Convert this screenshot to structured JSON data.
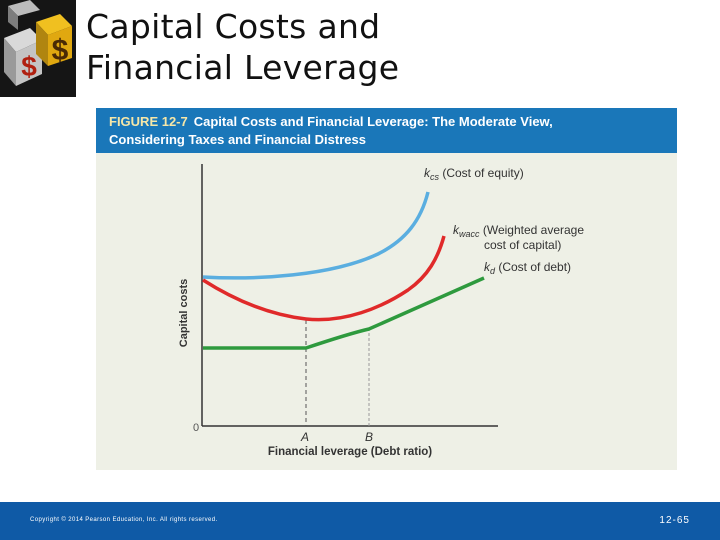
{
  "title": {
    "line1": "Capital Costs and",
    "line2": "Financial Leverage"
  },
  "figure": {
    "label": "FIGURE 12-7",
    "caption_line1": "Capital Costs and Financial Leverage: The Moderate View,",
    "caption_line2": "Considering Taxes and Financial Distress",
    "ylabel": "Capital costs",
    "xlabel": "Financial leverage (Debt ratio)",
    "origin": "0",
    "point_a": "A",
    "point_b": "B",
    "curves": {
      "equity_symbol": "k",
      "equity_sub": "cs",
      "equity_text": " (Cost of equity)",
      "wacc_symbol": "k",
      "wacc_sub": "wacc",
      "wacc_text": " (Weighted average",
      "wacc_text2": "cost of capital)",
      "debt_symbol": "k",
      "debt_sub": "d",
      "debt_text": " (Cost of debt)"
    },
    "colors": {
      "equity": "#5aaee0",
      "wacc": "#e02a2a",
      "debt": "#2e9a3e"
    }
  },
  "footer": {
    "copyright": "Copyright © 2014 Pearson Education, Inc. All rights reserved.",
    "page": "12-65"
  }
}
